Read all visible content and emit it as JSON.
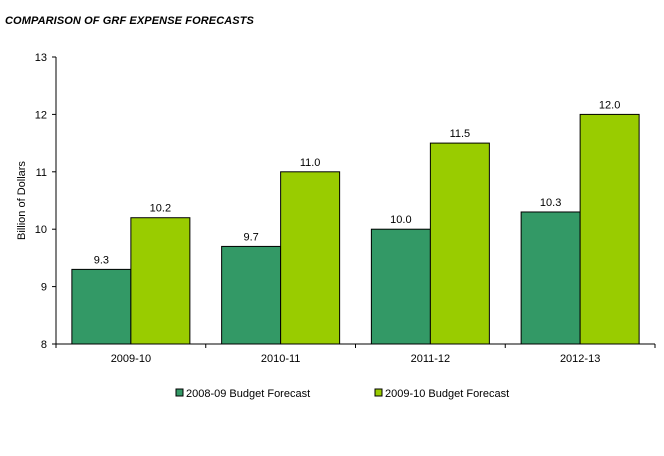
{
  "chart_data": {
    "type": "bar",
    "title": "COMPARISON OF GRF EXPENSE FORECASTS",
    "xlabel": "",
    "ylabel": "Billion of Dollars",
    "ylim": [
      8,
      13
    ],
    "yticks": [
      "8",
      "9",
      "10",
      "11",
      "12",
      "13"
    ],
    "categories": [
      "2009-10",
      "2010-11",
      "2011-12",
      "2012-13"
    ],
    "series": [
      {
        "name": "2008-09 Budget Forecast",
        "values": [
          9.3,
          9.7,
          10.0,
          10.3
        ],
        "labels": [
          "9.3",
          "9.7",
          "10.0",
          "10.3"
        ],
        "color": "#339966"
      },
      {
        "name": "2009-10 Budget Forecast",
        "values": [
          10.2,
          11.0,
          11.5,
          12.0
        ],
        "labels": [
          "10.2",
          "11.0",
          "11.5",
          "12.0"
        ],
        "color": "#99CC00"
      }
    ],
    "grid": false,
    "legend_position": "bottom"
  }
}
